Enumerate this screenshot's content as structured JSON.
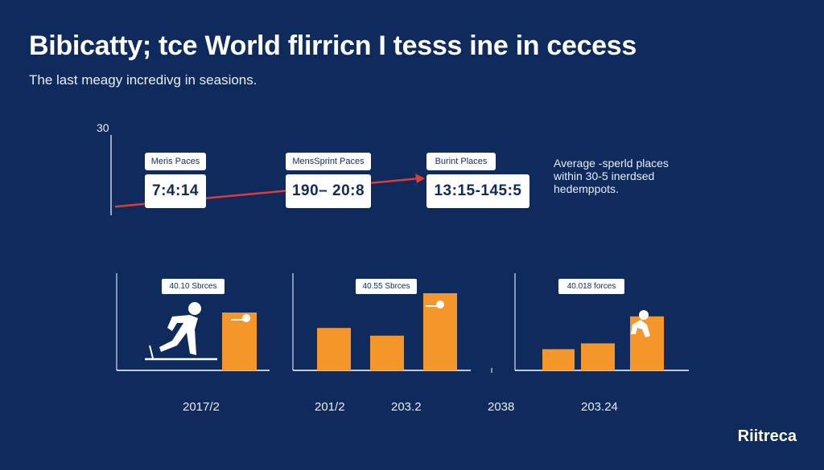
{
  "header": {
    "title": "Bibicatty; tce World flirricn I tesss ine in cecess",
    "subtitle": "The last meagy incredivg in seasions.",
    "y_value_label": "30"
  },
  "callouts": [
    {
      "label": "Meris Paces",
      "value": "7:4:14"
    },
    {
      "label": "MensSprint Paces",
      "value": "190– 20:8"
    },
    {
      "label": "Burint Places",
      "value": "13:15-145:5"
    }
  ],
  "note": {
    "lines": [
      "Average -sperld places",
      "within 30-5 inerdsed",
      "hedemppots."
    ]
  },
  "panel_labels": [
    "40.10 Sbrces",
    "40.55 Sbrces",
    "40.018 forces"
  ],
  "x_labels": [
    "2017/2",
    "201/2",
    "203.2",
    "2038",
    "203.24"
  ],
  "brand": "Riitreca",
  "colors": {
    "background": "#0f2b5e",
    "bar": "#f5962a",
    "trend": "#e03a3a",
    "axis": "#ffffff"
  },
  "chart_data": {
    "type": "bar",
    "title": "Bibicatty; tce World flirricn I tesss ine in cecess",
    "subtitle": "The last meagy incredivg in seasions.",
    "ylim": [
      0,
      50
    ],
    "grid": false,
    "panels": [
      {
        "label": "40.10 Sbrces",
        "bars": [
          {
            "value": 30
          }
        ]
      },
      {
        "label": "40.55 Sbrces",
        "bars": [
          {
            "value": 22
          },
          {
            "value": 18
          },
          {
            "value": 40
          }
        ]
      },
      {
        "label": "40.018 forces",
        "bars": [
          {
            "value": 11
          },
          {
            "value": 14
          },
          {
            "value": 28
          }
        ]
      }
    ],
    "trend": {
      "start": 0.2,
      "end": 1.0
    }
  }
}
